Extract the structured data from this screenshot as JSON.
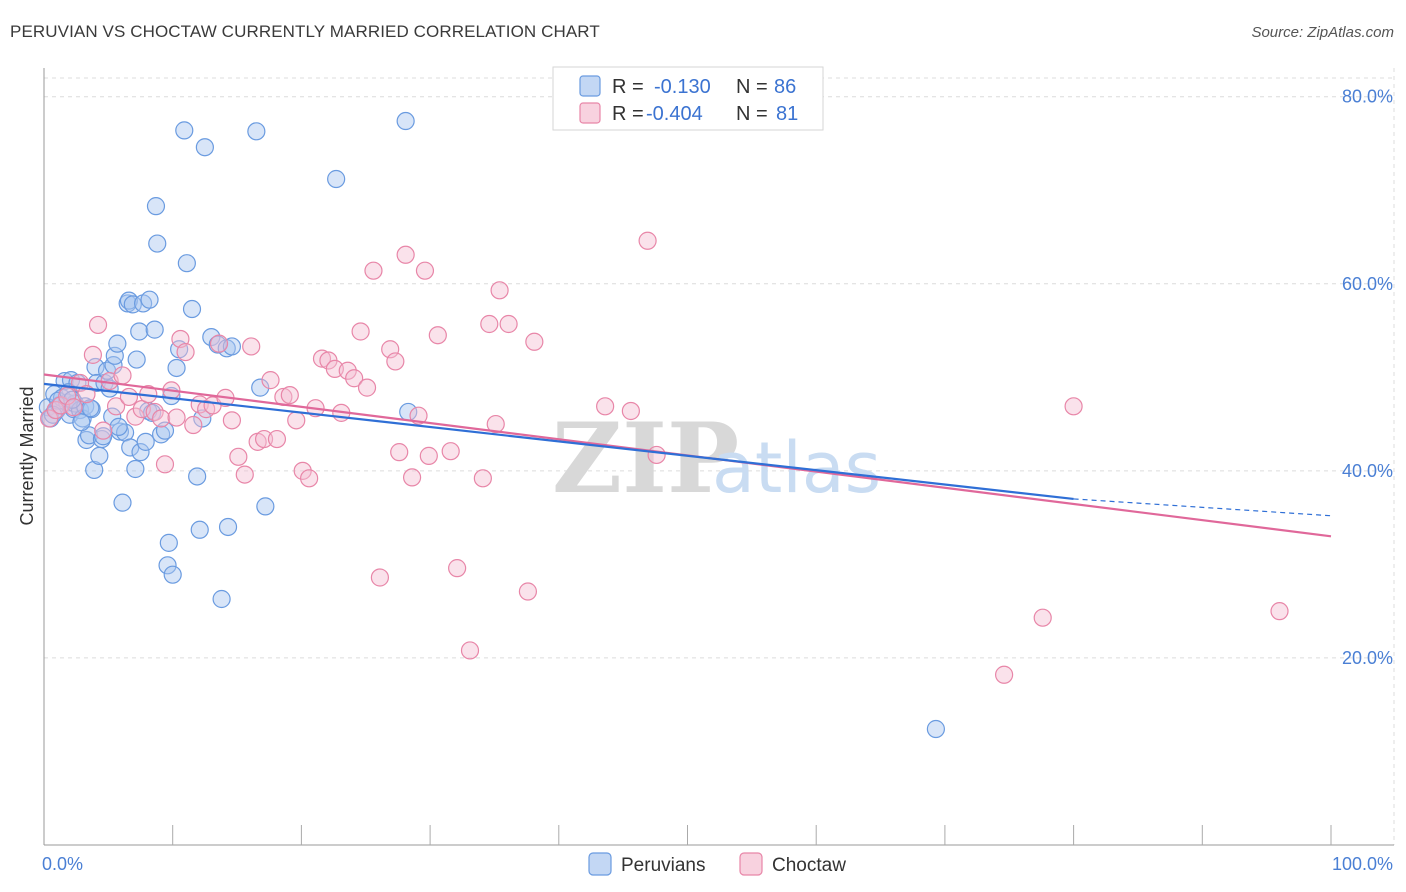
{
  "header": {
    "title": "PERUVIAN VS CHOCTAW CURRENTLY MARRIED CORRELATION CHART",
    "source": "Source: ZipAtlas.com"
  },
  "watermark": {
    "zip": "ZIP",
    "atlas": "atlas"
  },
  "colors": {
    "peruvians": "#6a9be0",
    "peruvians_fill": "#a9c6ef",
    "peruvians_line": "#2f6fd6",
    "choctaw": "#e886a8",
    "choctaw_fill": "#f5bfd2",
    "choctaw_line": "#e0689a",
    "grid": "#dcdcdc",
    "tick_text": "#4a7fd4"
  },
  "chart_data": {
    "type": "scatter",
    "title": "PERUVIAN VS CHOCTAW CURRENTLY MARRIED CORRELATION CHART",
    "xlabel": "",
    "ylabel": "Currently Married",
    "xlim": [
      0,
      100
    ],
    "ylim": [
      0,
      82
    ],
    "x_tick_labels": {
      "left": "0.0%",
      "right": "100.0%"
    },
    "y_ticks": [
      {
        "value": 20,
        "label": "20.0%"
      },
      {
        "value": 40,
        "label": "40.0%"
      },
      {
        "value": 60,
        "label": "60.0%"
      },
      {
        "value": 80,
        "label": "80.0%"
      }
    ],
    "grid": true,
    "legend": {
      "placement": "top-center",
      "entries": [
        {
          "series": "Peruvians",
          "r_label": "R =",
          "r_value": "-0.130",
          "n_label": "N =",
          "n_value": "86"
        },
        {
          "series": "Choctaw",
          "r_label": "R =",
          "r_value": "-0.404",
          "n_label": "N =",
          "n_value": "81"
        }
      ]
    },
    "series": [
      {
        "name": "Peruvians",
        "trend": {
          "x0": 0,
          "y0": 49.3,
          "x1": 80,
          "y1": 37.0,
          "dash_to_x": 100,
          "dash_to_y": 35.2
        },
        "points": [
          [
            0.3,
            46.8
          ],
          [
            0.5,
            45.6
          ],
          [
            0.8,
            48.2
          ],
          [
            1.0,
            46.5
          ],
          [
            1.2,
            47.0
          ],
          [
            1.4,
            47.8
          ],
          [
            1.6,
            49.6
          ],
          [
            1.8,
            47.3
          ],
          [
            2.0,
            46.0
          ],
          [
            2.1,
            49.7
          ],
          [
            2.3,
            46.6
          ],
          [
            2.4,
            47.2
          ],
          [
            2.6,
            49.4
          ],
          [
            2.8,
            46.5
          ],
          [
            3.0,
            45.6
          ],
          [
            3.2,
            46.9
          ],
          [
            3.3,
            43.3
          ],
          [
            3.5,
            43.8
          ],
          [
            3.7,
            46.6
          ],
          [
            3.9,
            40.1
          ],
          [
            4.0,
            51.1
          ],
          [
            4.1,
            49.4
          ],
          [
            4.3,
            41.6
          ],
          [
            4.5,
            43.4
          ],
          [
            4.7,
            49.4
          ],
          [
            4.9,
            50.7
          ],
          [
            5.1,
            48.8
          ],
          [
            5.3,
            45.8
          ],
          [
            5.4,
            51.3
          ],
          [
            5.5,
            52.3
          ],
          [
            5.7,
            53.6
          ],
          [
            5.9,
            44.2
          ],
          [
            6.1,
            36.6
          ],
          [
            6.3,
            44.1
          ],
          [
            6.5,
            57.9
          ],
          [
            6.6,
            58.2
          ],
          [
            6.7,
            42.5
          ],
          [
            6.9,
            57.8
          ],
          [
            7.1,
            40.2
          ],
          [
            7.2,
            51.9
          ],
          [
            7.4,
            54.9
          ],
          [
            7.5,
            42.0
          ],
          [
            7.7,
            57.9
          ],
          [
            7.9,
            43.1
          ],
          [
            8.1,
            46.4
          ],
          [
            8.2,
            58.3
          ],
          [
            8.4,
            46.2
          ],
          [
            8.6,
            55.1
          ],
          [
            8.7,
            68.3
          ],
          [
            8.8,
            64.3
          ],
          [
            9.1,
            43.9
          ],
          [
            9.4,
            44.3
          ],
          [
            9.6,
            29.9
          ],
          [
            9.7,
            32.3
          ],
          [
            9.9,
            48.0
          ],
          [
            10.0,
            28.9
          ],
          [
            10.3,
            51.0
          ],
          [
            10.5,
            53.0
          ],
          [
            10.9,
            76.4
          ],
          [
            11.1,
            62.2
          ],
          [
            11.5,
            57.3
          ],
          [
            11.9,
            39.4
          ],
          [
            12.1,
            33.7
          ],
          [
            12.3,
            45.6
          ],
          [
            12.5,
            74.6
          ],
          [
            13.0,
            54.3
          ],
          [
            13.5,
            53.5
          ],
          [
            13.8,
            26.3
          ],
          [
            14.2,
            53.1
          ],
          [
            14.3,
            34.0
          ],
          [
            14.6,
            53.3
          ],
          [
            16.5,
            76.3
          ],
          [
            16.8,
            48.9
          ],
          [
            17.2,
            36.2
          ],
          [
            28.1,
            77.4
          ],
          [
            28.3,
            46.3
          ],
          [
            22.7,
            71.2
          ],
          [
            69.3,
            12.4
          ],
          [
            1.1,
            47.5
          ],
          [
            0.7,
            46.0
          ],
          [
            2.9,
            45.2
          ],
          [
            3.6,
            46.7
          ],
          [
            5.8,
            44.7
          ],
          [
            1.9,
            48.4
          ],
          [
            2.2,
            47.6
          ],
          [
            4.6,
            43.7
          ]
        ]
      },
      {
        "name": "Choctaw",
        "trend": {
          "x0": 0,
          "y0": 50.3,
          "x1": 100,
          "y1": 33.0
        },
        "points": [
          [
            0.4,
            45.6
          ],
          [
            0.9,
            46.5
          ],
          [
            1.3,
            47.0
          ],
          [
            1.8,
            48.0
          ],
          [
            2.3,
            46.8
          ],
          [
            2.8,
            49.4
          ],
          [
            3.3,
            48.2
          ],
          [
            3.8,
            52.4
          ],
          [
            4.2,
            55.6
          ],
          [
            4.6,
            44.3
          ],
          [
            5.1,
            49.6
          ],
          [
            5.6,
            46.9
          ],
          [
            6.1,
            50.2
          ],
          [
            6.6,
            47.9
          ],
          [
            7.1,
            45.8
          ],
          [
            7.6,
            46.6
          ],
          [
            8.1,
            48.2
          ],
          [
            8.6,
            46.3
          ],
          [
            9.1,
            45.6
          ],
          [
            9.4,
            40.7
          ],
          [
            9.9,
            48.6
          ],
          [
            10.3,
            45.7
          ],
          [
            10.6,
            54.1
          ],
          [
            11.0,
            52.7
          ],
          [
            11.6,
            44.9
          ],
          [
            12.1,
            47.1
          ],
          [
            12.6,
            46.6
          ],
          [
            13.1,
            47.0
          ],
          [
            13.6,
            53.6
          ],
          [
            14.1,
            47.8
          ],
          [
            14.6,
            45.4
          ],
          [
            15.1,
            41.5
          ],
          [
            15.6,
            39.6
          ],
          [
            16.1,
            53.3
          ],
          [
            16.6,
            43.1
          ],
          [
            17.1,
            43.4
          ],
          [
            17.6,
            49.7
          ],
          [
            18.1,
            43.4
          ],
          [
            18.6,
            47.9
          ],
          [
            19.1,
            48.1
          ],
          [
            19.6,
            45.4
          ],
          [
            20.1,
            40.0
          ],
          [
            20.6,
            39.2
          ],
          [
            21.1,
            46.7
          ],
          [
            21.6,
            52.0
          ],
          [
            22.1,
            51.8
          ],
          [
            22.6,
            50.9
          ],
          [
            23.1,
            46.2
          ],
          [
            23.6,
            50.7
          ],
          [
            24.1,
            49.9
          ],
          [
            24.6,
            54.9
          ],
          [
            25.1,
            48.9
          ],
          [
            25.6,
            61.4
          ],
          [
            26.1,
            28.6
          ],
          [
            26.9,
            53.0
          ],
          [
            27.3,
            51.7
          ],
          [
            27.6,
            42.0
          ],
          [
            28.1,
            63.1
          ],
          [
            28.6,
            39.3
          ],
          [
            29.1,
            45.9
          ],
          [
            29.6,
            61.4
          ],
          [
            29.9,
            41.6
          ],
          [
            30.6,
            54.5
          ],
          [
            31.6,
            42.1
          ],
          [
            32.1,
            29.6
          ],
          [
            33.1,
            20.8
          ],
          [
            34.1,
            39.2
          ],
          [
            34.6,
            55.7
          ],
          [
            35.1,
            45.0
          ],
          [
            35.4,
            59.3
          ],
          [
            36.1,
            55.7
          ],
          [
            37.6,
            27.1
          ],
          [
            38.1,
            53.8
          ],
          [
            43.6,
            46.9
          ],
          [
            45.6,
            46.4
          ],
          [
            46.9,
            64.6
          ],
          [
            47.6,
            41.7
          ],
          [
            74.6,
            18.2
          ],
          [
            77.6,
            24.3
          ],
          [
            80.0,
            46.9
          ],
          [
            96.0,
            25.0
          ]
        ]
      }
    ]
  },
  "bottom_legend": {
    "items": [
      {
        "label": "Peruvians"
      },
      {
        "label": "Choctaw"
      }
    ]
  }
}
